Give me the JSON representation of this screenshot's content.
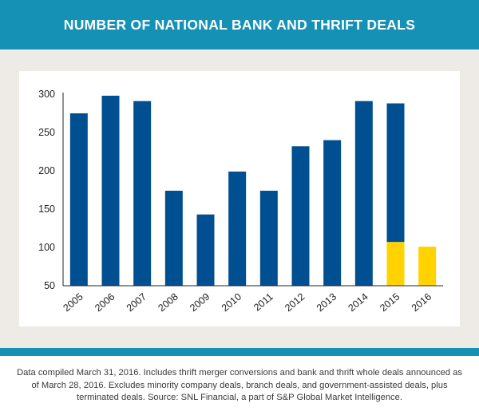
{
  "header": {
    "title": "NUMBER OF NATIONAL BANK AND THRIFT DEALS"
  },
  "footnote": {
    "text": "Data compiled March 31, 2016. Includes thrift merger conversions and bank and thrift whole deals announced as of March 28, 2016. Excludes minority company deals, branch deals, and government-assisted deals, plus terminated deals. Source: SNL Financial, a part of S&P Global Market Intelligence."
  },
  "colors": {
    "header_bg": "#1591b6",
    "panel_bg": "#eeebe6",
    "bar_primary": "#004f91",
    "bar_highlight": "#ffd200"
  },
  "chart_data": {
    "type": "bar",
    "categories": [
      "2005",
      "2006",
      "2007",
      "2008",
      "2009",
      "2010",
      "2011",
      "2012",
      "2013",
      "2014",
      "2015",
      "2016"
    ],
    "values": [
      275,
      298,
      291,
      174,
      143,
      199,
      174,
      232,
      240,
      291,
      288,
      101
    ],
    "highlight_levels": [
      null,
      null,
      null,
      null,
      null,
      null,
      null,
      null,
      null,
      null,
      107,
      101
    ],
    "ylim": [
      50,
      300
    ],
    "yticks": [
      50,
      100,
      150,
      200,
      250,
      300
    ],
    "xlabel": "",
    "ylabel": "",
    "grid": false,
    "legend": "none"
  }
}
